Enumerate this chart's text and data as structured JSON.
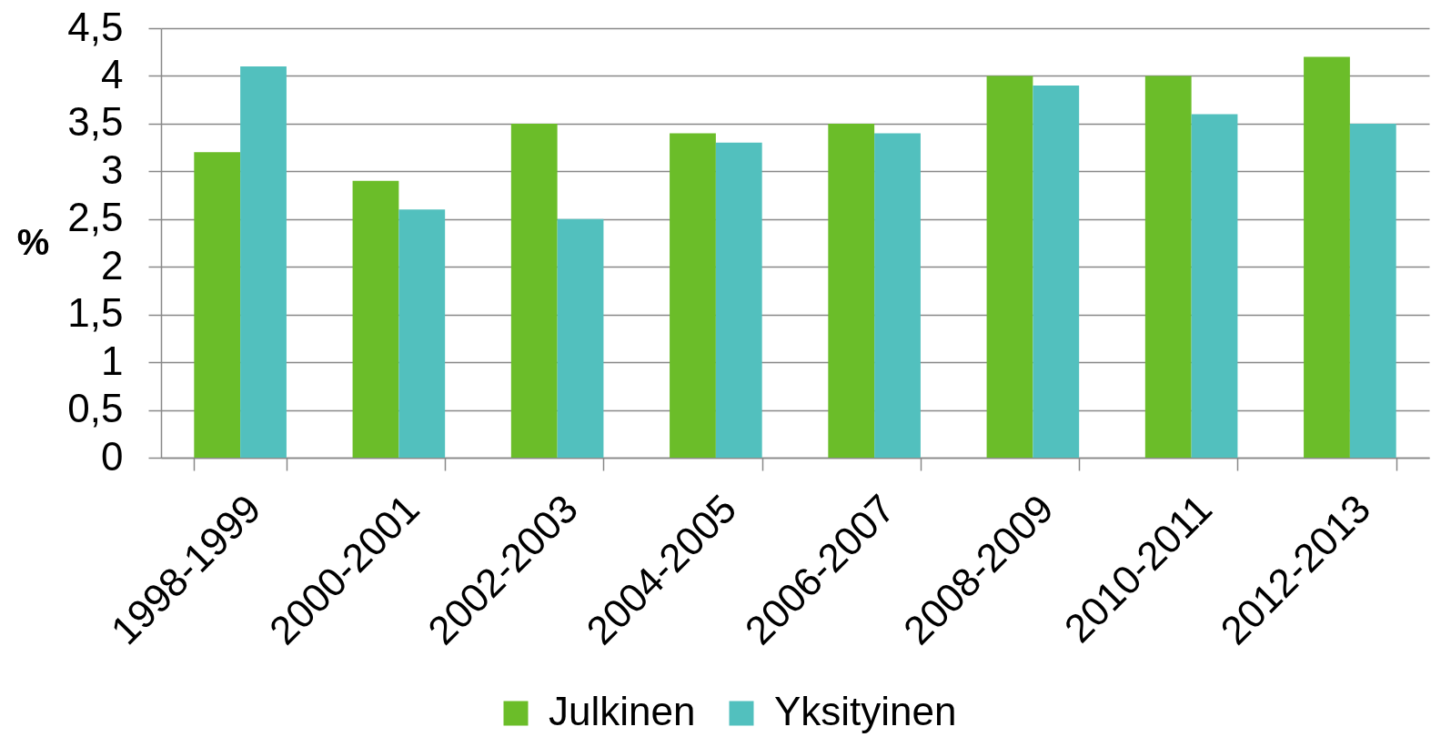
{
  "chart_data": {
    "type": "bar",
    "ylabel": "%",
    "categories": [
      "1998-1999",
      "2000-2001",
      "2002-2003",
      "2004-2005",
      "2006-2007",
      "2008-2009",
      "2010-2011",
      "2012-2013"
    ],
    "series": [
      {
        "name": "Julkinen",
        "color": "#6bbd29",
        "values": [
          3.2,
          2.9,
          3.5,
          3.4,
          3.5,
          4.0,
          4.0,
          4.2
        ]
      },
      {
        "name": "Yksityinen",
        "color": "#52c0be",
        "values": [
          4.1,
          2.6,
          2.5,
          3.3,
          3.4,
          3.9,
          3.6,
          3.5
        ]
      }
    ],
    "ylim": [
      0,
      4.5
    ],
    "yticks": [
      0,
      {
        "value": 0.5,
        "label": "0,5"
      },
      1,
      {
        "value": 1.5,
        "label": "1,5"
      },
      2,
      {
        "value": 2.5,
        "label": "2,5"
      },
      3,
      {
        "value": 3.5,
        "label": "3,5"
      },
      4,
      {
        "value": 4.5,
        "label": "4,5"
      }
    ],
    "grid": "y",
    "legend": "bottom"
  }
}
